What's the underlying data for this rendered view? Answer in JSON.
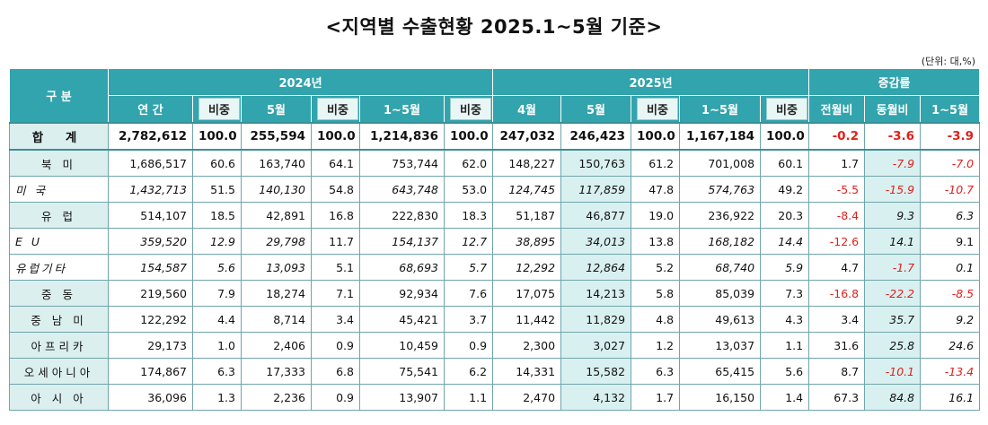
{
  "title": "<지역별 수출현황 2025.1~5월 기준>",
  "unit": "(단위: 대,%)",
  "header": {
    "category": "구  분",
    "y2024": "2024년",
    "y2025": "2025년",
    "change": "증감률",
    "cols": [
      "연 간",
      "비중",
      "5월",
      "비중",
      "1~5월",
      "비중",
      "4월",
      "5월",
      "비중",
      "1~5월",
      "비중",
      "전월비",
      "동월비",
      "1~5월"
    ]
  },
  "rows": [
    {
      "label": "합  계",
      "vals": [
        "2,782,612",
        "100.0",
        "255,594",
        "100.0",
        "1,214,836",
        "100.0",
        "247,032",
        "246,423",
        "100.0",
        "1,167,184",
        "100.0",
        "-0.2",
        "-3.6",
        "-3.9"
      ]
    },
    {
      "label": "북  미",
      "vals": [
        "1,686,517",
        "60.6",
        "163,740",
        "64.1",
        "753,744",
        "62.0",
        "148,227",
        "150,763",
        "61.2",
        "701,008",
        "60.1",
        "1.7",
        "-7.9",
        "-7.0"
      ]
    },
    {
      "label": "미 국",
      "vals": [
        "1,432,713",
        "51.5",
        "140,130",
        "54.8",
        "643,748",
        "53.0",
        "124,745",
        "117,859",
        "47.8",
        "574,763",
        "49.2",
        "-5.5",
        "-15.9",
        "-10.7"
      ]
    },
    {
      "label": "유  럽",
      "vals": [
        "514,107",
        "18.5",
        "42,891",
        "16.8",
        "222,830",
        "18.3",
        "51,187",
        "46,877",
        "19.0",
        "236,922",
        "20.3",
        "-8.4",
        "9.3",
        "6.3"
      ]
    },
    {
      "label": "E U",
      "vals": [
        "359,520",
        "12.9",
        "29,798",
        "11.7",
        "154,137",
        "12.7",
        "38,895",
        "34,013",
        "13.8",
        "168,182",
        "14.4",
        "-12.6",
        "14.1",
        "9.1"
      ]
    },
    {
      "label": "유럽기타",
      "vals": [
        "154,587",
        "5.6",
        "13,093",
        "5.1",
        "68,693",
        "5.7",
        "12,292",
        "12,864",
        "5.2",
        "68,740",
        "5.9",
        "4.7",
        "-1.7",
        "0.1"
      ]
    },
    {
      "label": "중  동",
      "vals": [
        "219,560",
        "7.9",
        "18,274",
        "7.1",
        "92,934",
        "7.6",
        "17,075",
        "14,213",
        "5.8",
        "85,039",
        "7.3",
        "-16.8",
        "-22.2",
        "-8.5"
      ]
    },
    {
      "label": "중 남 미",
      "vals": [
        "122,292",
        "4.4",
        "8,714",
        "3.4",
        "45,421",
        "3.7",
        "11,442",
        "11,829",
        "4.8",
        "49,613",
        "4.3",
        "3.4",
        "35.7",
        "9.2"
      ]
    },
    {
      "label": "아프리카",
      "vals": [
        "29,173",
        "1.0",
        "2,406",
        "0.9",
        "10,459",
        "0.9",
        "2,300",
        "3,027",
        "1.2",
        "13,037",
        "1.1",
        "31.6",
        "25.8",
        "24.6"
      ]
    },
    {
      "label": "오세아니아",
      "vals": [
        "174,867",
        "6.3",
        "17,333",
        "6.8",
        "75,541",
        "6.2",
        "14,331",
        "15,582",
        "6.3",
        "65,415",
        "5.6",
        "8.7",
        "-10.1",
        "-13.4"
      ]
    },
    {
      "label": "아 시 아",
      "vals": [
        "36,096",
        "1.3",
        "2,236",
        "0.9",
        "13,907",
        "1.1",
        "2,470",
        "4,132",
        "1.7",
        "16,150",
        "1.4",
        "67.3",
        "84.8",
        "16.1"
      ]
    }
  ]
}
